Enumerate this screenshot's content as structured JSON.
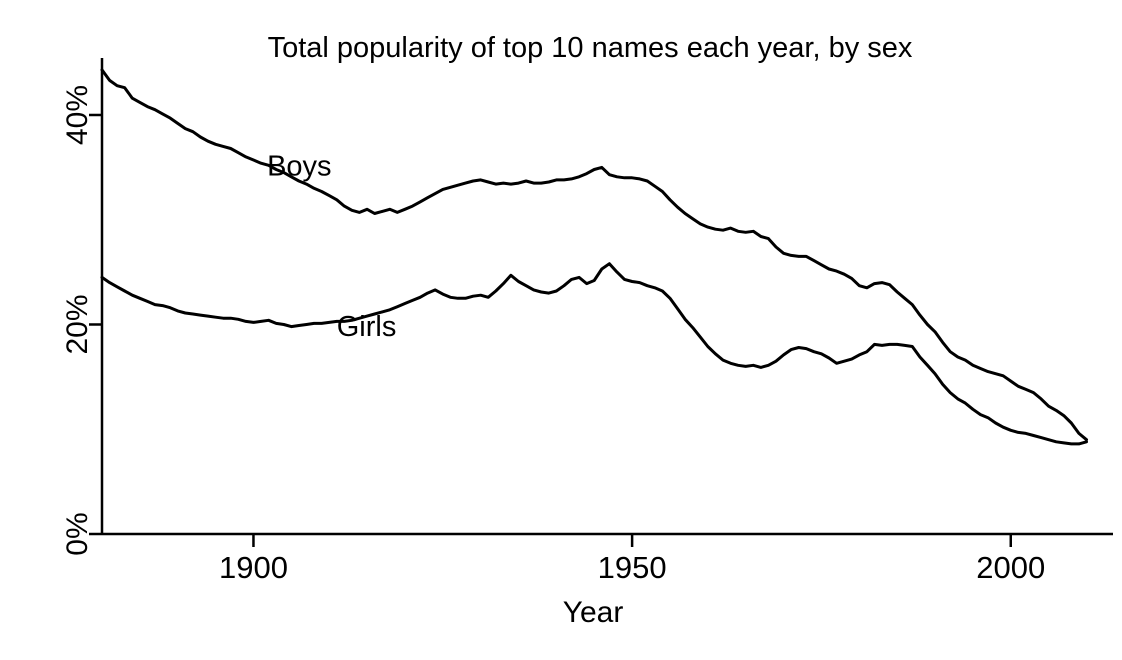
{
  "chart_data": {
    "type": "line",
    "title": "Total popularity of top 10 names each year, by sex",
    "xlabel": "Year",
    "ylabel": "",
    "xlim": [
      1880,
      2013.5
    ],
    "ylim": [
      0,
      45.44
    ],
    "grid": false,
    "legend_position": "inline-annotations",
    "line_color": "#000000",
    "background_color": "#ffffff",
    "x_ticks": [
      {
        "v": 1900,
        "label": "1900"
      },
      {
        "v": 1950,
        "label": "1950"
      },
      {
        "v": 2000,
        "label": "2000"
      }
    ],
    "y_ticks": [
      {
        "v": 0,
        "label": "0%"
      },
      {
        "v": 20,
        "label": "20%"
      },
      {
        "v": 40,
        "label": "40%"
      }
    ],
    "years": [
      1880,
      1881,
      1882,
      1883,
      1884,
      1885,
      1886,
      1887,
      1888,
      1889,
      1890,
      1891,
      1892,
      1893,
      1894,
      1895,
      1896,
      1897,
      1898,
      1899,
      1900,
      1901,
      1902,
      1903,
      1904,
      1905,
      1906,
      1907,
      1908,
      1909,
      1910,
      1911,
      1912,
      1913,
      1914,
      1915,
      1916,
      1917,
      1918,
      1919,
      1920,
      1921,
      1922,
      1923,
      1924,
      1925,
      1926,
      1927,
      1928,
      1929,
      1930,
      1931,
      1932,
      1933,
      1934,
      1935,
      1936,
      1937,
      1938,
      1939,
      1940,
      1941,
      1942,
      1943,
      1944,
      1945,
      1946,
      1947,
      1948,
      1949,
      1950,
      1951,
      1952,
      1953,
      1954,
      1955,
      1956,
      1957,
      1958,
      1959,
      1960,
      1961,
      1962,
      1963,
      1964,
      1965,
      1966,
      1967,
      1968,
      1969,
      1970,
      1971,
      1972,
      1973,
      1974,
      1975,
      1976,
      1977,
      1978,
      1979,
      1980,
      1981,
      1982,
      1983,
      1984,
      1985,
      1986,
      1987,
      1988,
      1989,
      1990,
      1991,
      1992,
      1993,
      1994,
      1995,
      1996,
      1997,
      1998,
      1999,
      2000,
      2001,
      2002,
      2003,
      2004,
      2005,
      2006,
      2007,
      2008,
      2009,
      2010
    ],
    "series": [
      {
        "name": "Boys",
        "values": [
          44.3,
          43.3,
          42.8,
          42.6,
          41.6,
          41.2,
          40.8,
          40.5,
          40.1,
          39.7,
          39.2,
          38.7,
          38.4,
          37.9,
          37.5,
          37.2,
          37.0,
          36.8,
          36.4,
          36.0,
          35.7,
          35.4,
          35.2,
          34.8,
          34.5,
          34.1,
          33.7,
          33.4,
          33.0,
          32.7,
          32.3,
          31.9,
          31.3,
          30.9,
          30.7,
          31.0,
          30.6,
          30.8,
          31.0,
          30.7,
          31.0,
          31.3,
          31.7,
          32.1,
          32.5,
          32.9,
          33.1,
          33.3,
          33.5,
          33.7,
          33.8,
          33.6,
          33.4,
          33.5,
          33.4,
          33.5,
          33.7,
          33.5,
          33.5,
          33.6,
          33.8,
          33.8,
          33.9,
          34.1,
          34.4,
          34.8,
          35.0,
          34.3,
          34.1,
          34.0,
          34.0,
          33.9,
          33.7,
          33.2,
          32.7,
          31.9,
          31.2,
          30.6,
          30.1,
          29.6,
          29.3,
          29.1,
          29.0,
          29.2,
          28.9,
          28.8,
          28.9,
          28.4,
          28.2,
          27.4,
          26.8,
          26.6,
          26.5,
          26.5,
          26.1,
          25.7,
          25.3,
          25.1,
          24.8,
          24.4,
          23.7,
          23.5,
          23.9,
          24.0,
          23.8,
          23.1,
          22.5,
          21.9,
          20.9,
          20.0,
          19.3,
          18.3,
          17.4,
          16.9,
          16.6,
          16.1,
          15.8,
          15.5,
          15.3,
          15.1,
          14.6,
          14.1,
          13.8,
          13.5,
          12.9,
          12.2,
          11.8,
          11.3,
          10.6,
          9.6,
          9.0
        ]
      },
      {
        "name": "Girls",
        "values": [
          24.5,
          24.0,
          23.6,
          23.2,
          22.8,
          22.5,
          22.2,
          21.9,
          21.8,
          21.6,
          21.3,
          21.1,
          21.0,
          20.9,
          20.8,
          20.7,
          20.6,
          20.6,
          20.5,
          20.3,
          20.2,
          20.3,
          20.4,
          20.1,
          20.0,
          19.8,
          19.9,
          20.0,
          20.1,
          20.1,
          20.2,
          20.3,
          20.3,
          20.4,
          20.6,
          20.8,
          21.0,
          21.2,
          21.4,
          21.7,
          22.0,
          22.3,
          22.6,
          23.0,
          23.3,
          22.9,
          22.6,
          22.5,
          22.5,
          22.7,
          22.8,
          22.6,
          23.2,
          23.9,
          24.7,
          24.1,
          23.7,
          23.3,
          23.1,
          23.0,
          23.2,
          23.7,
          24.3,
          24.5,
          23.9,
          24.2,
          25.3,
          25.8,
          25.0,
          24.3,
          24.1,
          24.0,
          23.7,
          23.5,
          23.2,
          22.5,
          21.5,
          20.5,
          19.7,
          18.8,
          17.9,
          17.2,
          16.6,
          16.3,
          16.1,
          16.0,
          16.1,
          15.9,
          16.1,
          16.5,
          17.1,
          17.6,
          17.8,
          17.7,
          17.4,
          17.2,
          16.8,
          16.3,
          16.5,
          16.7,
          17.1,
          17.4,
          18.1,
          18.0,
          18.1,
          18.1,
          18.0,
          17.9,
          16.9,
          16.1,
          15.3,
          14.3,
          13.5,
          12.9,
          12.5,
          11.9,
          11.4,
          11.1,
          10.6,
          10.2,
          9.9,
          9.7,
          9.6,
          9.4,
          9.2,
          9.0,
          8.8,
          8.7,
          8.6,
          8.6,
          8.8
        ]
      }
    ],
    "annotations": [
      {
        "id": "boys-series-label",
        "text": "Boys",
        "year": 1901.8,
        "pct": 34.2
      },
      {
        "id": "girls-series-label",
        "text": "Girls",
        "year": 1911.0,
        "pct": 18.9
      }
    ]
  }
}
